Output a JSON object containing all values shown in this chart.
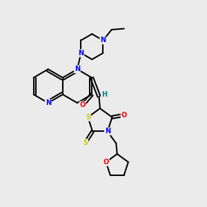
{
  "background_color": "#ebebeb",
  "atom_colors": {
    "N": "#0000ff",
    "O": "#ff0000",
    "S": "#cccc00",
    "H": "#008080",
    "C": "#000000"
  },
  "bond_color": "#000000",
  "bond_width": 1.5
}
